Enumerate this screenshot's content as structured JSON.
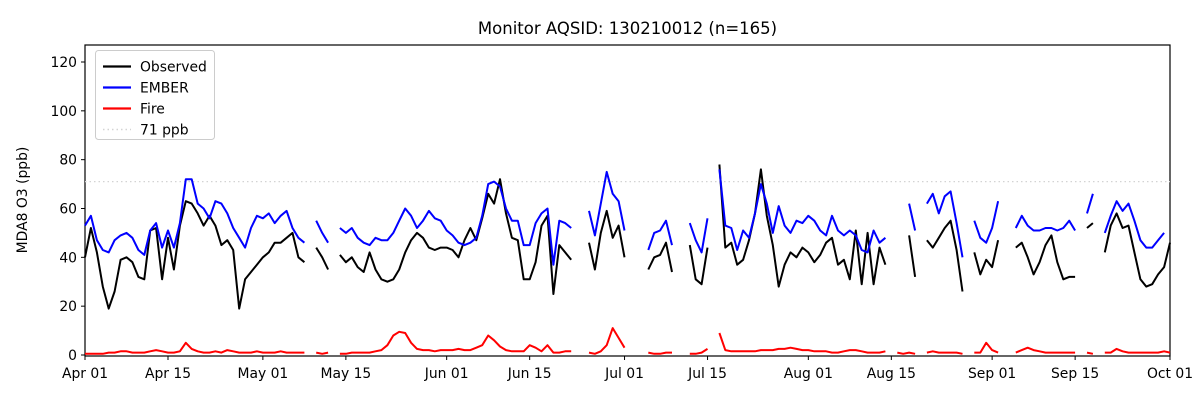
{
  "chart_data": {
    "type": "line",
    "title": "Monitor AQSID: 130210012 (n=165)",
    "ylabel": "MDA8 O3 (ppb)",
    "n_observations": 165,
    "x_axis": {
      "tick_labels": [
        "Apr 01",
        "Apr 15",
        "May 01",
        "May 15",
        "Jun 01",
        "Jun 15",
        "Jul 01",
        "Jul 15",
        "Aug 01",
        "Aug 15",
        "Sep 01",
        "Sep 15",
        "Oct 01"
      ],
      "tick_day_offsets": [
        0,
        14,
        30,
        44,
        61,
        75,
        91,
        105,
        122,
        136,
        153,
        167,
        183
      ],
      "total_days": 183
    },
    "y_axis": {
      "ticks": [
        0,
        20,
        40,
        60,
        80,
        100,
        120
      ],
      "lim": [
        -1,
        127
      ],
      "grid": false
    },
    "threshold": {
      "label": "71 ppb",
      "value": 71,
      "color": "#d3d3d3",
      "style": "dotted"
    },
    "legend": {
      "position": "upper-left"
    },
    "series": [
      {
        "name": "Observed",
        "color": "#000000",
        "values": [
          40,
          52,
          42,
          28,
          19,
          26,
          39,
          40,
          38,
          32,
          31,
          51,
          52,
          31,
          48,
          35,
          53,
          63,
          62,
          58,
          53,
          57,
          53,
          45,
          47,
          43,
          19,
          31,
          34,
          37,
          40,
          42,
          46,
          46,
          48,
          50,
          40,
          38,
          null,
          44,
          40,
          35,
          null,
          41,
          38,
          40,
          36,
          34,
          42,
          35,
          31,
          30,
          31,
          35,
          42,
          47,
          50,
          48,
          44,
          43,
          44,
          44,
          43,
          40,
          47,
          52,
          47,
          56,
          66,
          62,
          72,
          58,
          48,
          47,
          31,
          31,
          38,
          53,
          57,
          25,
          45,
          42,
          39,
          null,
          null,
          46,
          35,
          50,
          59,
          48,
          53,
          40,
          null,
          null,
          null,
          35,
          40,
          41,
          46,
          34,
          null,
          null,
          45,
          31,
          29,
          44,
          null,
          78,
          44,
          46,
          37,
          39,
          47,
          58,
          76,
          57,
          45,
          28,
          37,
          42,
          40,
          44,
          42,
          38,
          41,
          46,
          48,
          37,
          39,
          31,
          51,
          29,
          50,
          29,
          44,
          37,
          null,
          null,
          null,
          49,
          32,
          null,
          47,
          44,
          48,
          52,
          55,
          43,
          26,
          null,
          42,
          33,
          39,
          36,
          47,
          null,
          null,
          44,
          46,
          40,
          33,
          38,
          45,
          49,
          38,
          31,
          32,
          32,
          null,
          52,
          54,
          null,
          42,
          53,
          58,
          52,
          53,
          42,
          31,
          28,
          29,
          33,
          36,
          46
        ]
      },
      {
        "name": "EMBER",
        "color": "#0000ff",
        "values": [
          53,
          57,
          47,
          43,
          42,
          47,
          49,
          50,
          48,
          43,
          41,
          51,
          54,
          44,
          51,
          44,
          54,
          72,
          72,
          62,
          60,
          56,
          63,
          62,
          58,
          52,
          48,
          44,
          52,
          57,
          56,
          58,
          54,
          57,
          59,
          52,
          48,
          46,
          null,
          55,
          50,
          46,
          null,
          52,
          50,
          52,
          48,
          46,
          45,
          48,
          47,
          47,
          50,
          55,
          60,
          57,
          52,
          55,
          59,
          56,
          55,
          51,
          49,
          46,
          45,
          46,
          48,
          57,
          70,
          71,
          69,
          60,
          55,
          55,
          45,
          45,
          54,
          58,
          60,
          37,
          55,
          54,
          52,
          null,
          null,
          59,
          49,
          62,
          75,
          66,
          63,
          51,
          null,
          null,
          null,
          43,
          50,
          51,
          55,
          45,
          null,
          null,
          54,
          47,
          42,
          56,
          null,
          76,
          53,
          52,
          43,
          51,
          48,
          58,
          70,
          62,
          50,
          61,
          53,
          50,
          55,
          54,
          57,
          55,
          51,
          49,
          57,
          51,
          49,
          51,
          49,
          43,
          42,
          51,
          46,
          48,
          null,
          null,
          null,
          62,
          51,
          null,
          62,
          66,
          58,
          65,
          67,
          54,
          40,
          null,
          55,
          48,
          46,
          52,
          63,
          null,
          null,
          52,
          57,
          53,
          51,
          51,
          52,
          52,
          51,
          52,
          55,
          51,
          null,
          58,
          66,
          null,
          50,
          57,
          63,
          59,
          62,
          55,
          47,
          44,
          44,
          47,
          50,
          null
        ]
      },
      {
        "name": "Fire",
        "color": "#ff0000",
        "values": [
          0.5,
          0.5,
          0.5,
          0.5,
          1,
          1,
          1.5,
          1.5,
          1,
          1,
          1,
          1.5,
          2,
          1.5,
          1,
          1,
          1.5,
          5,
          2.5,
          1.5,
          1,
          1,
          1.5,
          1,
          2,
          1.5,
          1,
          1,
          1,
          1.5,
          1,
          1,
          1,
          1.5,
          1,
          1,
          1,
          1,
          null,
          1,
          0.5,
          1,
          null,
          0.5,
          0.5,
          1,
          1,
          1,
          1,
          1.5,
          2,
          4,
          8,
          9.5,
          9,
          5,
          2.5,
          2,
          2,
          1.5,
          2,
          2,
          2,
          2.5,
          2,
          2,
          3,
          4,
          8,
          6,
          3.5,
          2,
          1.5,
          1.5,
          1.5,
          4,
          3,
          1.5,
          4,
          1,
          1,
          1.5,
          1.5,
          null,
          null,
          1,
          0.5,
          1.5,
          4,
          11,
          7,
          3,
          null,
          null,
          null,
          1,
          0.5,
          0.5,
          1,
          1,
          null,
          null,
          0.5,
          0.5,
          1,
          2.5,
          null,
          9,
          2,
          1.5,
          1.5,
          1.5,
          1.5,
          1.5,
          2,
          2,
          2,
          2.5,
          2.5,
          3,
          2.5,
          2,
          2,
          1.5,
          1.5,
          1.5,
          1,
          1,
          1.5,
          2,
          2,
          1.5,
          1,
          1,
          1,
          1.5,
          null,
          1,
          0.5,
          1,
          0.5,
          null,
          1,
          1.5,
          1,
          1,
          1,
          1,
          0.5,
          null,
          1,
          1,
          5,
          2,
          1,
          null,
          null,
          1,
          2,
          3,
          2,
          1.5,
          1,
          1,
          1,
          1,
          1,
          1,
          null,
          1,
          0.5,
          null,
          1,
          1,
          2.5,
          1.5,
          1,
          1,
          1,
          1,
          1,
          1,
          1.5,
          1
        ]
      }
    ]
  }
}
